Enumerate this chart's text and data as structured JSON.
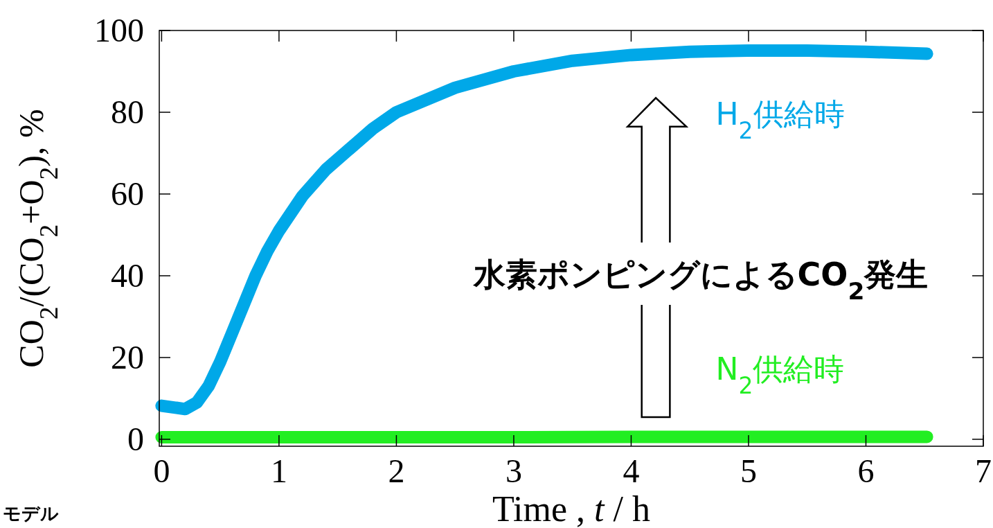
{
  "chart_data": {
    "type": "line",
    "xlabel": "Time , *t* / h",
    "ylabel": "CO$_{2}$/(CO$_{2}$+O$_{2}$), %",
    "xlim": [
      -0.02,
      7
    ],
    "ylim": [
      -1.7,
      100
    ],
    "xticks": [
      0,
      1,
      2,
      3,
      4,
      5,
      6,
      7
    ],
    "yticks": [
      0,
      20,
      40,
      60,
      80,
      100
    ],
    "grid": false,
    "marker": "none",
    "line_style": "solid",
    "series": [
      {
        "name": "H$_{2}$供給時",
        "color": "#00a8e8",
        "x": [
          0,
          0.2,
          0.3,
          0.4,
          0.5,
          0.6,
          0.7,
          0.8,
          0.9,
          1.0,
          1.2,
          1.4,
          1.6,
          1.8,
          2.0,
          2.5,
          3.0,
          3.5,
          4.0,
          4.5,
          5.0,
          5.5,
          6.0,
          6.52
        ],
        "values": [
          8.2,
          7.4,
          9,
          13,
          19,
          26,
          33,
          40,
          46,
          51,
          59.5,
          66,
          71,
          76,
          80,
          86,
          90,
          92.6,
          94,
          94.8,
          95.1,
          95.1,
          94.8,
          94.3
        ]
      },
      {
        "name": "N$_{2}$供給時",
        "color": "#22ee22",
        "x": [
          0,
          1,
          2,
          3,
          4,
          5,
          6,
          6.52
        ],
        "values": [
          0.5,
          0.5,
          0.5,
          0.5,
          0.6,
          0.6,
          0.6,
          0.6
        ]
      }
    ],
    "annotations": [
      "水素ポンピングによるCO$_{2}$発生",
      "モデル"
    ]
  }
}
